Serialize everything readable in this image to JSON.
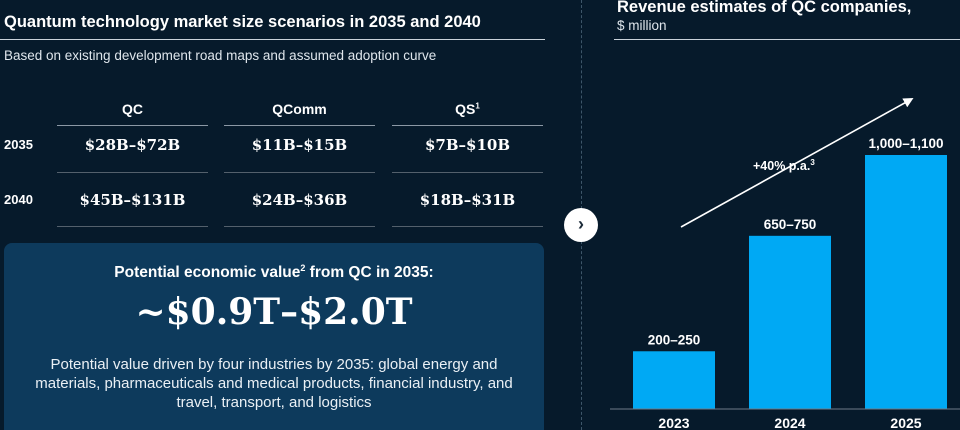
{
  "market": {
    "title": "Quantum technology market size scenarios in 2035 and 2040",
    "subtitle": "Based on existing development road maps and assumed adoption curve",
    "columns": [
      {
        "label": "QC",
        "sup": ""
      },
      {
        "label": "QComm",
        "sup": ""
      },
      {
        "label": "QS",
        "sup": "1"
      }
    ],
    "rows": [
      {
        "year": "2035",
        "values": [
          "$28B–$72B",
          "$11B–$15B",
          "$7B–$10B"
        ]
      },
      {
        "year": "2040",
        "values": [
          "$45B–$131B",
          "$24B–$36B",
          "$18B–$31B"
        ]
      }
    ]
  },
  "economic_value": {
    "heading_pre": "Potential economic value",
    "heading_sup": "2",
    "heading_post": " from QC in 2035:",
    "value": "~$0.9T–$2.0T",
    "description": "Potential value driven by four industries by 2035: global energy and materials, pharmaceuticals and medical products, financial industry, and travel, transport, and logistics"
  },
  "nav": {
    "next_glyph": "›"
  },
  "chart_data": {
    "type": "bar",
    "title": "Revenue estimates of QC companies,",
    "unit_label": "$ million",
    "categories": [
      "2023",
      "2024",
      "2025"
    ],
    "ranges": [
      [
        200,
        250
      ],
      [
        650,
        750
      ],
      [
        1000,
        1100
      ]
    ],
    "data_labels": [
      "200–250",
      "650–750",
      "1,000–1,100"
    ],
    "trend_label": "+40% p.a.",
    "trend_sup": "3",
    "ylim": [
      0,
      1100
    ],
    "bar_color": "#00a9f4",
    "grid": false,
    "legend": false
  }
}
